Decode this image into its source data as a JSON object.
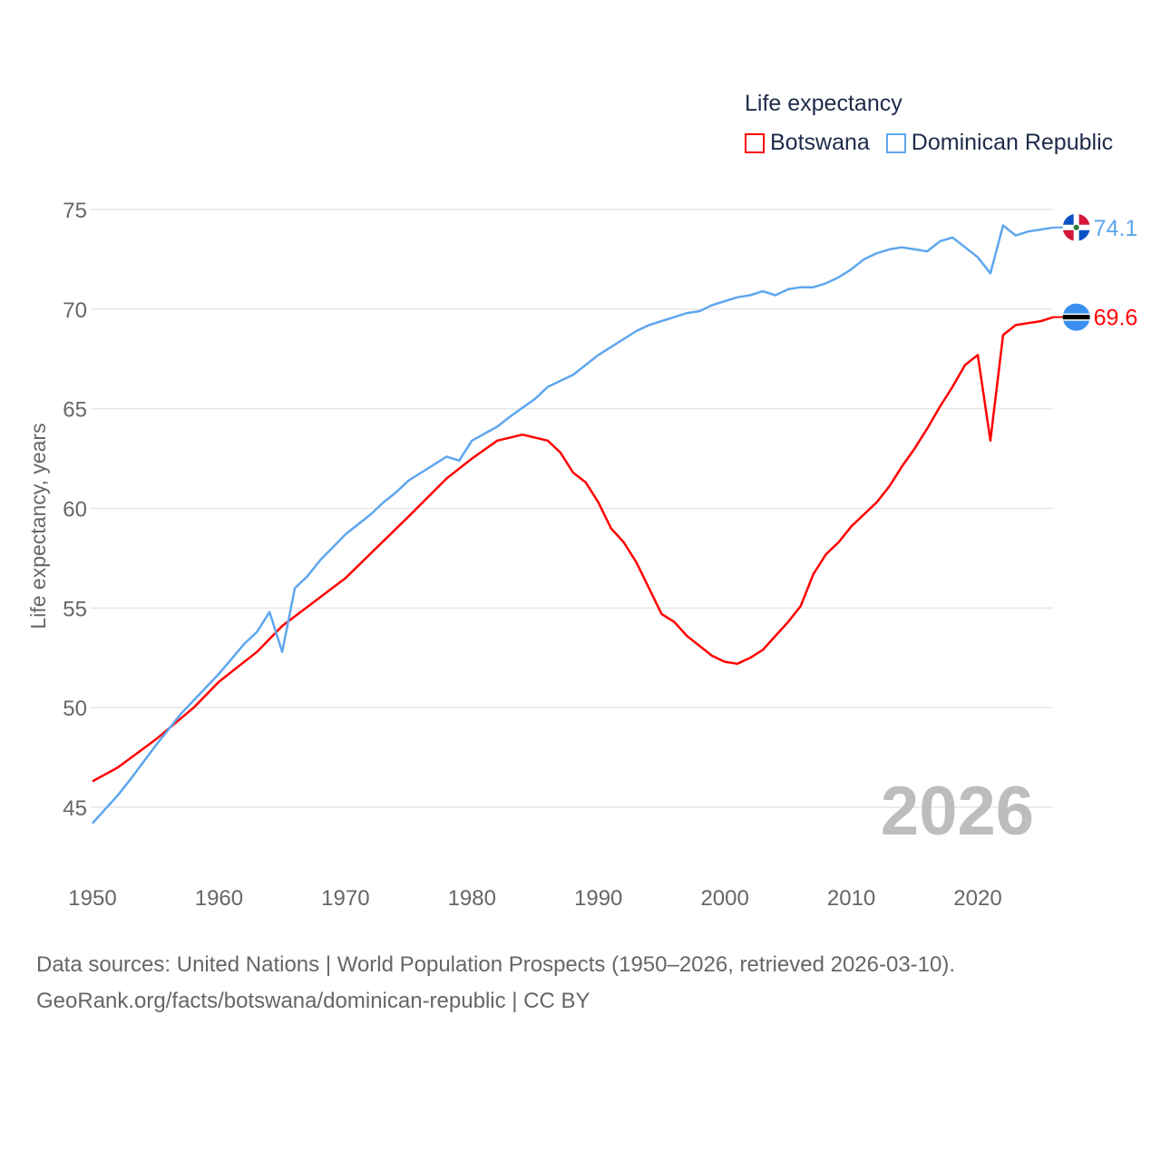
{
  "chart_data": {
    "type": "line",
    "title": "Life expectancy",
    "xlabel": "",
    "ylabel": "Life expectancy, years",
    "xlim": [
      1950,
      2026
    ],
    "ylim": [
      43,
      77
    ],
    "yticks": [
      "45",
      "50",
      "55",
      "60",
      "65",
      "70",
      "75"
    ],
    "xticks": [
      "1950",
      "1960",
      "1970",
      "1980",
      "1990",
      "2000",
      "2010",
      "2020"
    ],
    "grid": true,
    "legend_position": "top-right",
    "watermark_year": "2026",
    "series": [
      {
        "name": "Botswana",
        "color": "#ff0000",
        "end_label": "69.6",
        "x": [
          1950,
          1952,
          1955,
          1958,
          1960,
          1963,
          1965,
          1970,
          1975,
          1978,
          1980,
          1982,
          1984,
          1986,
          1987,
          1988,
          1989,
          1990,
          1991,
          1992,
          1993,
          1994,
          1995,
          1996,
          1997,
          1998,
          1999,
          2000,
          2001,
          2002,
          2003,
          2004,
          2005,
          2006,
          2007,
          2008,
          2009,
          2010,
          2011,
          2012,
          2013,
          2014,
          2015,
          2016,
          2017,
          2018,
          2019,
          2020,
          2021,
          2022,
          2023,
          2024,
          2025,
          2026
        ],
        "y": [
          46.3,
          47.0,
          48.4,
          50.0,
          51.3,
          52.8,
          54.1,
          56.5,
          59.6,
          61.5,
          62.5,
          63.4,
          63.7,
          63.4,
          62.8,
          61.8,
          61.3,
          60.3,
          59.0,
          58.3,
          57.3,
          56.0,
          54.7,
          54.3,
          53.6,
          53.1,
          52.6,
          52.3,
          52.2,
          52.5,
          52.9,
          53.6,
          54.3,
          55.1,
          56.7,
          57.7,
          58.3,
          59.1,
          59.7,
          60.3,
          61.1,
          62.1,
          63.0,
          64.0,
          65.1,
          66.1,
          67.2,
          67.7,
          63.4,
          68.7,
          69.2,
          69.3,
          69.4,
          69.6
        ]
      },
      {
        "name": "Dominican Republic",
        "color": "#5ea6ee",
        "end_label": "74.1",
        "x": [
          1950,
          1951,
          1952,
          1953,
          1955,
          1957,
          1960,
          1962,
          1963,
          1964,
          1965,
          1966,
          1967,
          1968,
          1970,
          1972,
          1973,
          1974,
          1975,
          1976,
          1977,
          1978,
          1979,
          1980,
          1982,
          1983,
          1985,
          1986,
          1988,
          1990,
          1991,
          1992,
          1993,
          1994,
          1995,
          1996,
          1997,
          1998,
          1999,
          2000,
          2001,
          2002,
          2003,
          2004,
          2005,
          2006,
          2007,
          2008,
          2009,
          2010,
          2011,
          2012,
          2013,
          2014,
          2015,
          2016,
          2017,
          2018,
          2019,
          2020,
          2021,
          2022,
          2023,
          2024,
          2025,
          2026
        ],
        "y": [
          44.2,
          44.9,
          45.6,
          46.4,
          48.1,
          49.7,
          51.7,
          53.2,
          53.8,
          54.8,
          52.8,
          56.0,
          56.6,
          57.4,
          58.7,
          59.7,
          60.3,
          60.8,
          61.4,
          61.8,
          62.2,
          62.6,
          62.4,
          63.4,
          64.1,
          64.6,
          65.5,
          66.1,
          66.7,
          67.7,
          68.1,
          68.5,
          68.9,
          69.2,
          69.4,
          69.6,
          69.8,
          69.9,
          70.2,
          70.4,
          70.6,
          70.7,
          70.9,
          70.7,
          71.0,
          71.1,
          71.1,
          71.3,
          71.6,
          72.0,
          72.5,
          72.8,
          73.0,
          73.1,
          73.0,
          72.9,
          73.4,
          73.6,
          73.1,
          72.6,
          71.8,
          74.2,
          73.7,
          73.9,
          74.0,
          74.1
        ]
      }
    ]
  },
  "footer": {
    "line1": "Data sources: United Nations | World Population Prospects (1950–2026, retrieved 2026-03-10).",
    "line2": "GeoRank.org/facts/botswana/dominican-republic | CC BY"
  }
}
